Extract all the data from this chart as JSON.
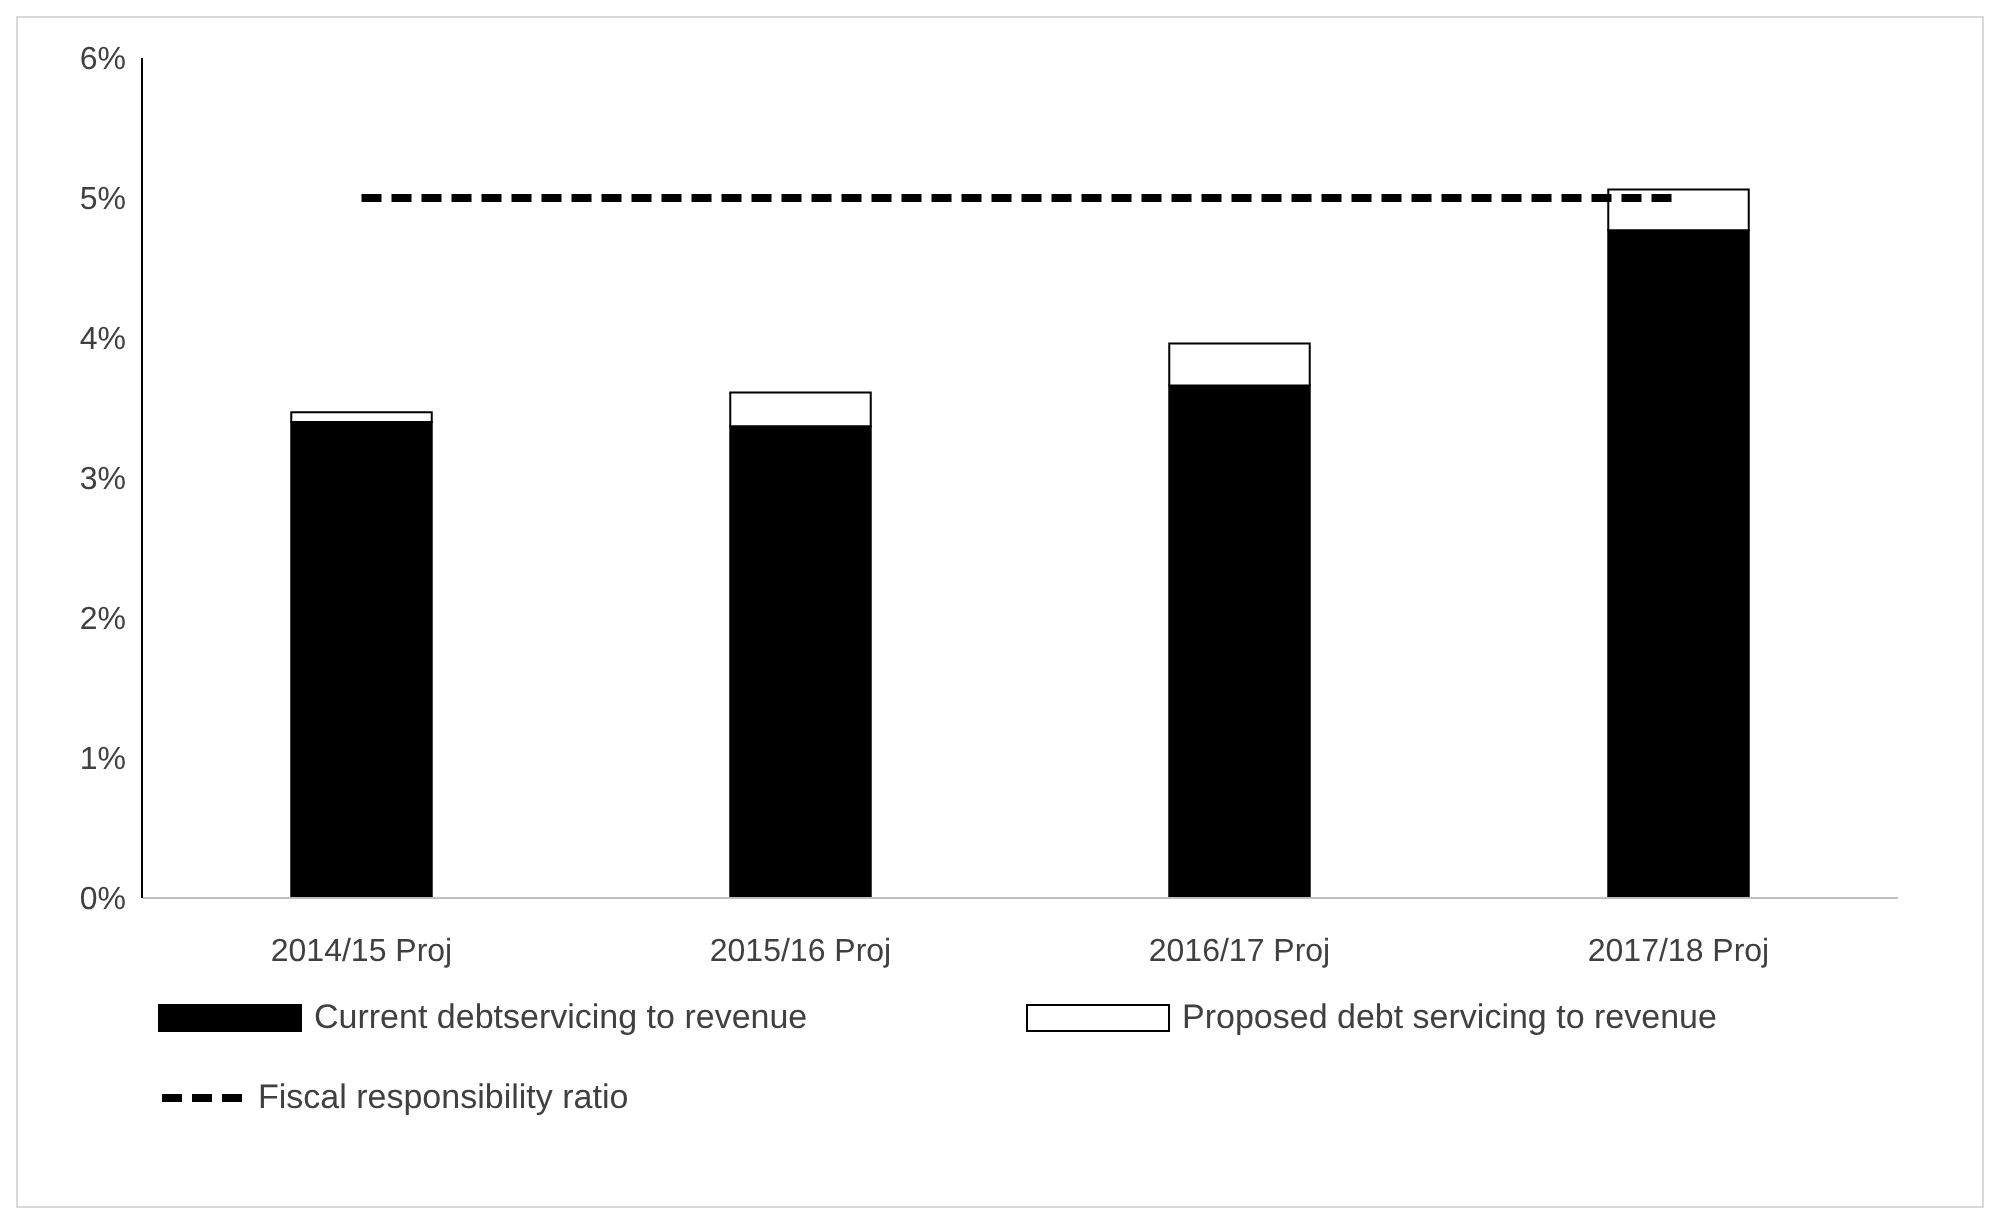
{
  "chart_data": {
    "type": "bar",
    "stacked": true,
    "categories": [
      "2014/15 Proj",
      "2015/16 Proj",
      "2016/17 Proj",
      "2017/18 Proj"
    ],
    "series": [
      {
        "name": "Current debtservicing to revenue",
        "color": "#000000",
        "values": [
          3.4,
          3.37,
          3.66,
          4.77
        ]
      },
      {
        "name": "Proposed debt servicing to revenue",
        "color": "#ffffff",
        "values": [
          0.07,
          0.24,
          0.3,
          0.29
        ]
      },
      {
        "name": "Fiscal responsibility ratio",
        "type": "line",
        "color": "#000000",
        "line_style": "dashed",
        "marker": "none",
        "values": [
          5,
          5,
          5,
          5
        ]
      }
    ],
    "ylim": [
      0,
      6
    ],
    "yticks": [
      {
        "value": 0,
        "label": "0%"
      },
      {
        "value": 1,
        "label": "1%"
      },
      {
        "value": 2,
        "label": "2%"
      },
      {
        "value": 3,
        "label": "3%"
      },
      {
        "value": 4,
        "label": "4%"
      },
      {
        "value": 5,
        "label": "5%"
      },
      {
        "value": 6,
        "label": "6%"
      }
    ],
    "grid": false,
    "legend": "bottom"
  }
}
